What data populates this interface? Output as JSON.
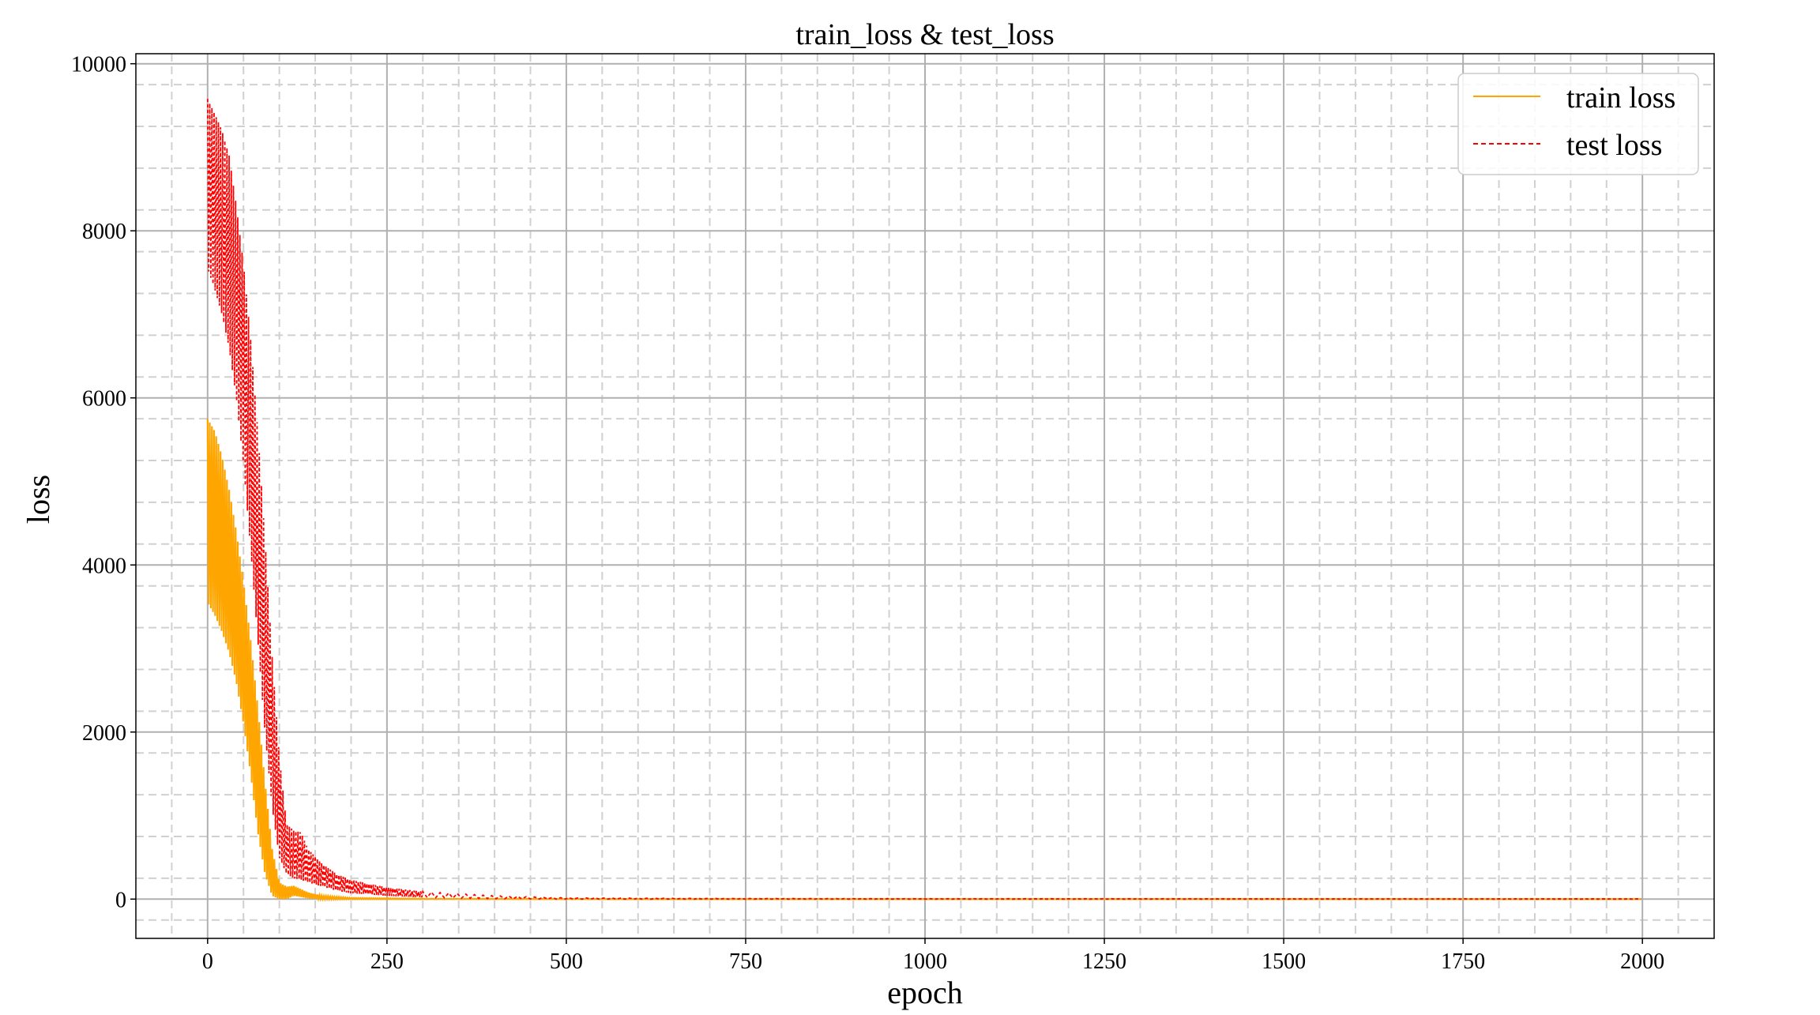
{
  "chart_data": {
    "type": "line",
    "title": "train_loss & test_loss",
    "xlabel": "epoch",
    "ylabel": "loss",
    "xlim": [
      -100,
      2100
    ],
    "ylim": [
      -470,
      10120
    ],
    "xticks": [
      0,
      250,
      500,
      750,
      1000,
      1250,
      1500,
      1750,
      2000
    ],
    "yticks": [
      0,
      2000,
      4000,
      6000,
      8000,
      10000
    ],
    "grid": {
      "major": "solid",
      "minor": "dashed"
    },
    "legend_position": "top-right",
    "series": [
      {
        "name": "train loss",
        "color": "#ffa500",
        "style": "solid",
        "band": [
          [
            0,
            3550,
            5750
          ],
          [
            10,
            3400,
            5600
          ],
          [
            20,
            3200,
            5300
          ],
          [
            30,
            2950,
            4900
          ],
          [
            40,
            2600,
            4400
          ],
          [
            50,
            2100,
            3800
          ],
          [
            60,
            1500,
            3100
          ],
          [
            70,
            800,
            2300
          ],
          [
            80,
            300,
            1400
          ],
          [
            90,
            40,
            600
          ],
          [
            100,
            0,
            200
          ],
          [
            110,
            0,
            150
          ],
          [
            120,
            40,
            160
          ],
          [
            140,
            10,
            80
          ],
          [
            160,
            0,
            40
          ],
          [
            200,
            0,
            15
          ],
          [
            300,
            0,
            5
          ],
          [
            500,
            0,
            2
          ],
          [
            2000,
            0,
            1
          ]
        ]
      },
      {
        "name": "test loss",
        "color": "#ff0000",
        "style": "dashed",
        "band": [
          [
            0,
            7550,
            9580
          ],
          [
            10,
            7300,
            9400
          ],
          [
            20,
            7000,
            9200
          ],
          [
            30,
            6600,
            8900
          ],
          [
            40,
            6000,
            8300
          ],
          [
            50,
            5200,
            7600
          ],
          [
            60,
            4200,
            6700
          ],
          [
            70,
            3100,
            5600
          ],
          [
            80,
            2000,
            4300
          ],
          [
            90,
            1100,
            2900
          ],
          [
            100,
            500,
            1700
          ],
          [
            110,
            300,
            900
          ],
          [
            120,
            250,
            820
          ],
          [
            130,
            230,
            800
          ],
          [
            140,
            200,
            600
          ],
          [
            160,
            150,
            420
          ],
          [
            180,
            100,
            300
          ],
          [
            200,
            70,
            230
          ],
          [
            250,
            40,
            140
          ],
          [
            300,
            20,
            90
          ],
          [
            400,
            5,
            40
          ],
          [
            500,
            0,
            15
          ],
          [
            700,
            0,
            8
          ],
          [
            1000,
            0,
            5
          ],
          [
            2000,
            0,
            3
          ]
        ]
      }
    ]
  }
}
